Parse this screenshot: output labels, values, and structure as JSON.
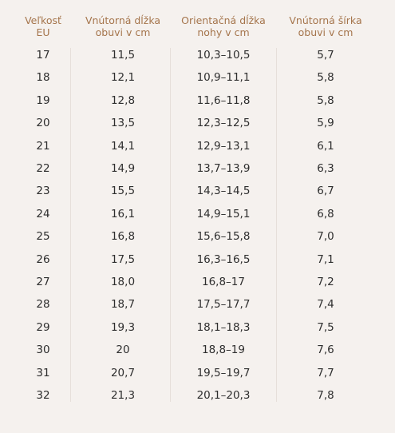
{
  "table": {
    "headers": [
      {
        "line1": "Veľkosť",
        "line2": "EU"
      },
      {
        "line1": "Vnútorná dĺžka",
        "line2": "obuvi v cm"
      },
      {
        "line1": "Orientačná dĺžka",
        "line2": "nohy v cm"
      },
      {
        "line1": "Vnútorná šírka",
        "line2": "obuvi v cm"
      }
    ],
    "rows": [
      {
        "size": "17",
        "inner_length": "11,5",
        "foot_length": "10,3–10,5",
        "inner_width": "5,7"
      },
      {
        "size": "18",
        "inner_length": "12,1",
        "foot_length": "10,9–11,1",
        "inner_width": "5,8"
      },
      {
        "size": "19",
        "inner_length": "12,8",
        "foot_length": "11,6–11,8",
        "inner_width": "5,8"
      },
      {
        "size": "20",
        "inner_length": "13,5",
        "foot_length": "12,3–12,5",
        "inner_width": "5,9"
      },
      {
        "size": "21",
        "inner_length": "14,1",
        "foot_length": "12,9–13,1",
        "inner_width": "6,1"
      },
      {
        "size": "22",
        "inner_length": "14,9",
        "foot_length": "13,7–13,9",
        "inner_width": "6,3"
      },
      {
        "size": "23",
        "inner_length": "15,5",
        "foot_length": "14,3–14,5",
        "inner_width": "6,7"
      },
      {
        "size": "24",
        "inner_length": "16,1",
        "foot_length": "14,9–15,1",
        "inner_width": "6,8"
      },
      {
        "size": "25",
        "inner_length": "16,8",
        "foot_length": "15,6–15,8",
        "inner_width": "7,0"
      },
      {
        "size": "26",
        "inner_length": "17,5",
        "foot_length": "16,3–16,5",
        "inner_width": "7,1"
      },
      {
        "size": "27",
        "inner_length": "18,0",
        "foot_length": "16,8–17",
        "inner_width": "7,2"
      },
      {
        "size": "28",
        "inner_length": "18,7",
        "foot_length": "17,5–17,7",
        "inner_width": "7,4"
      },
      {
        "size": "29",
        "inner_length": "19,3",
        "foot_length": "18,1–18,3",
        "inner_width": "7,5"
      },
      {
        "size": "30",
        "inner_length": "20",
        "foot_length": "18,8–19",
        "inner_width": "7,6"
      },
      {
        "size": "31",
        "inner_length": "20,7",
        "foot_length": "19,5–19,7",
        "inner_width": "7,7"
      },
      {
        "size": "32",
        "inner_length": "21,3",
        "foot_length": "20,1–20,3",
        "inner_width": "7,8"
      }
    ]
  },
  "colors": {
    "background": "#f5f1ee",
    "header_text": "#a5754c",
    "body_text": "#2e2e2e",
    "divider": "#e6dfda"
  }
}
